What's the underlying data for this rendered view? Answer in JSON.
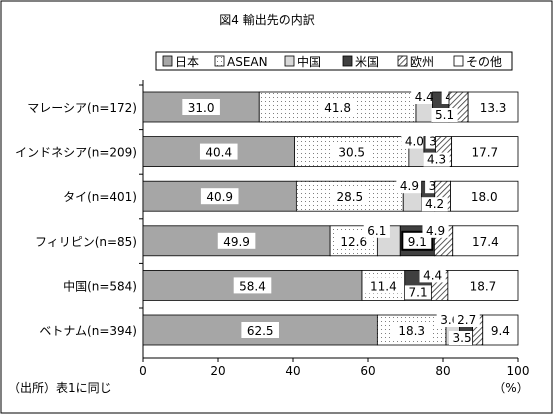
{
  "colors": {
    "japan": "#a6a6a6",
    "asean_dots": "#7f7f7f",
    "china": "#d9d9d9",
    "usa": "#404040",
    "europe_hatch": "#333333",
    "other": "#ffffff"
  },
  "chart_data": {
    "type": "bar",
    "orientation": "horizontal-stacked-percent",
    "title": "図4 輸出先の内訳",
    "xlabel": "",
    "ylabel": "",
    "xlim": [
      0,
      100
    ],
    "x_unit": "（%）",
    "xticks": [
      "0",
      "20",
      "40",
      "60",
      "80",
      "100"
    ],
    "legend_position": "top",
    "grid": false,
    "source_note": "（出所）表1に同じ",
    "categories": [
      "マレーシア(n=172)",
      "インドネシア(n=209)",
      "タイ(n=401)",
      "フィリピン(n=85)",
      "中国(n=584)",
      "ベトナム(n=394)"
    ],
    "series": [
      {
        "name": "日本",
        "key": "japan",
        "values": [
          31.0,
          40.4,
          40.9,
          49.9,
          58.4,
          62.5
        ],
        "labels": [
          "31.0",
          "40.4",
          "40.9",
          "49.9",
          "58.4",
          "62.5"
        ]
      },
      {
        "name": "ASEAN",
        "key": "asean",
        "values": [
          41.8,
          30.5,
          28.5,
          12.6,
          11.4,
          18.3
        ],
        "labels": [
          "41.8",
          "30.5",
          "28.5",
          "12.6",
          "11.4",
          "18.3"
        ]
      },
      {
        "name": "中国",
        "key": "china",
        "values": [
          4.4,
          4.0,
          4.9,
          6.1,
          0.0,
          3.6
        ],
        "labels": [
          "4.4",
          "4.0",
          "4.9",
          "6.1",
          "",
          "3.6"
        ]
      },
      {
        "name": "米国",
        "key": "usa",
        "values": [
          4.4,
          3.1,
          3.5,
          9.1,
          7.1,
          3.5
        ],
        "labels": [
          "4.4",
          "3.1",
          "3.5",
          "9.1",
          "7.1",
          "3.5"
        ]
      },
      {
        "name": "欧州",
        "key": "europe",
        "values": [
          5.1,
          4.3,
          4.2,
          4.9,
          4.4,
          2.7
        ],
        "labels": [
          "5.1",
          "4.3",
          "4.2",
          "4.9",
          "4.4",
          "2.7"
        ]
      },
      {
        "name": "その他",
        "key": "other",
        "values": [
          13.3,
          17.7,
          18.0,
          17.4,
          18.7,
          9.4
        ],
        "labels": [
          "13.3",
          "17.7",
          "18.0",
          "17.4",
          "18.7",
          "9.4"
        ]
      }
    ]
  }
}
